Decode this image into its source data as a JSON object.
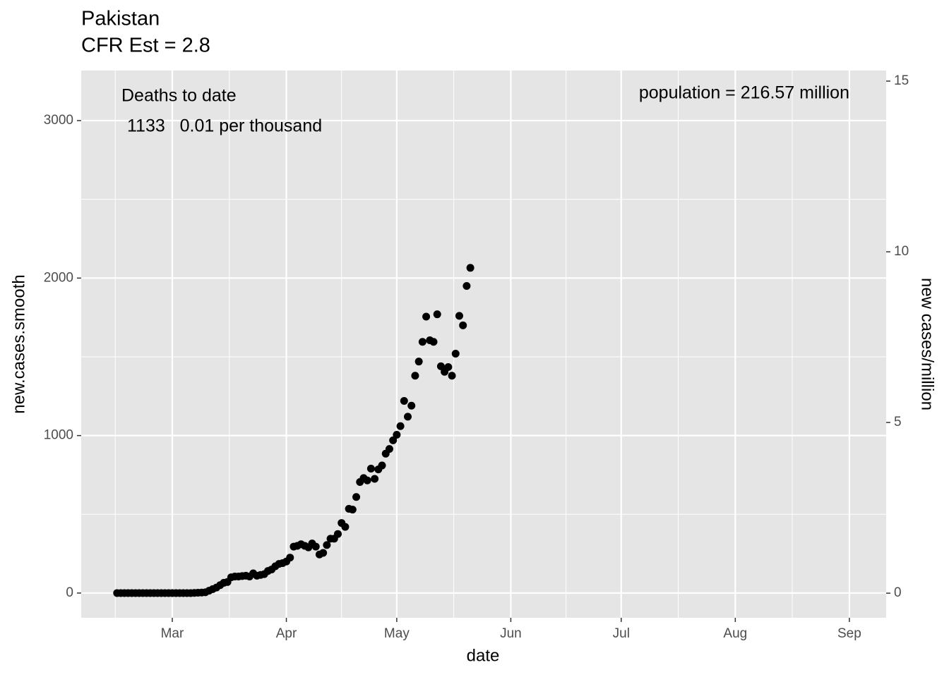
{
  "chart_data": {
    "type": "scatter",
    "title": "Pakistan",
    "subtitle": "CFR Est = 2.8",
    "xlabel": "date",
    "ylabel": "new.cases.smooth",
    "y2label": "new cases/million",
    "annotations": [
      "Deaths to date",
      "1133   0.01 per thousand",
      "population = 216.57 million"
    ],
    "x": [
      -15,
      -14,
      -13,
      -12,
      -11,
      -10,
      -9,
      -8,
      -7,
      -6,
      -5,
      -4,
      -3,
      -2,
      -1,
      0,
      1,
      2,
      3,
      4,
      5,
      6,
      7,
      8,
      9,
      10,
      11,
      12,
      13,
      14,
      15,
      16,
      17,
      18,
      19,
      20,
      21,
      22,
      23,
      24,
      25,
      26,
      27,
      28,
      29,
      30,
      31,
      32,
      33,
      34,
      35,
      36,
      37,
      38,
      39,
      40,
      41,
      42,
      43,
      44,
      45,
      46,
      47,
      48,
      49,
      50,
      51,
      52,
      53,
      54,
      55,
      56,
      57,
      58,
      59,
      60,
      61,
      62,
      63,
      64,
      65,
      66,
      67,
      68,
      69,
      70,
      71,
      72,
      73,
      74,
      75,
      76,
      77,
      78,
      79,
      80,
      81
    ],
    "series": [
      {
        "name": "new.cases.smooth",
        "color": "#000000",
        "values": [
          0,
          0,
          0,
          0,
          0,
          0,
          0,
          0,
          0,
          0,
          0,
          0,
          0,
          0,
          0,
          0,
          0,
          0,
          0,
          0,
          0,
          1,
          2,
          3,
          5,
          15,
          25,
          35,
          50,
          65,
          70,
          100,
          105,
          105,
          108,
          110,
          105,
          125,
          110,
          115,
          120,
          140,
          150,
          170,
          185,
          190,
          200,
          225,
          295,
          300,
          310,
          300,
          290,
          315,
          295,
          245,
          255,
          305,
          345,
          345,
          375,
          445,
          420,
          535,
          530,
          610,
          705,
          730,
          715,
          790,
          725,
          785,
          810,
          885,
          915,
          970,
          1005,
          1060,
          1220,
          1120,
          1190,
          1380,
          1470,
          1595,
          1755,
          1605,
          1595,
          1770,
          1440,
          1405,
          1435,
          1380,
          1520,
          1760,
          1700,
          1950,
          2065
        ]
      }
    ],
    "xlim": [
      -24.75,
      194
    ],
    "xticks": [
      {
        "value": 0,
        "label": "Mar"
      },
      {
        "value": 31,
        "label": "Apr"
      },
      {
        "value": 61,
        "label": "May"
      },
      {
        "value": 92,
        "label": "Jun"
      },
      {
        "value": 122,
        "label": "Jul"
      },
      {
        "value": 153,
        "label": "Aug"
      },
      {
        "value": 184,
        "label": "Sep"
      }
    ],
    "ylim": [
      -157,
      3318
    ],
    "yticks": [
      0,
      1000,
      2000,
      3000
    ],
    "y2lim": [
      -0.72,
      15.31
    ],
    "y2ticks": [
      0,
      5,
      10,
      15
    ],
    "grid": true
  }
}
